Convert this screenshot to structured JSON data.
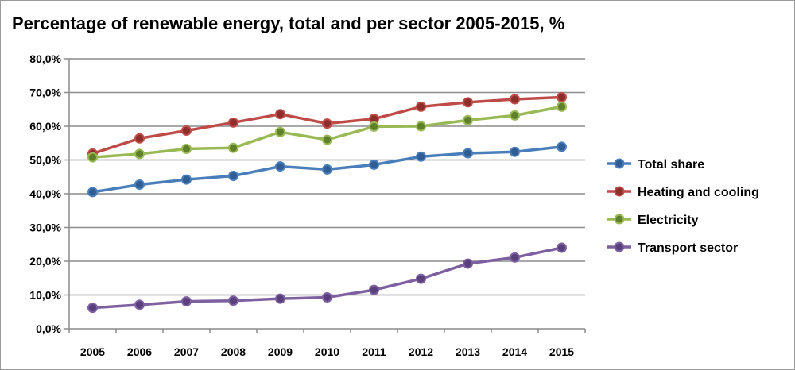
{
  "chart_data": {
    "type": "line",
    "title": "Percentage of renewable energy, total and per sector 2005-2015, %",
    "xlabel": "",
    "ylabel": "",
    "x": [
      "2005",
      "2006",
      "2007",
      "2008",
      "2009",
      "2010",
      "2011",
      "2012",
      "2013",
      "2014",
      "2015"
    ],
    "ylim": [
      0,
      80
    ],
    "yticks": [
      0,
      10,
      20,
      30,
      40,
      50,
      60,
      70,
      80
    ],
    "ytick_labels": [
      "0,0%",
      "10,0%",
      "20,0%",
      "30,0%",
      "40,0%",
      "50,0%",
      "60,0%",
      "70,0%",
      "80,0%"
    ],
    "grid": true,
    "legend_position": "right",
    "series": [
      {
        "name": "Total share",
        "color": "#4a7ebb",
        "marker_color": "#2f5d94",
        "values": [
          40.5,
          42.7,
          44.2,
          45.3,
          48.1,
          47.2,
          48.6,
          51.0,
          52.0,
          52.4,
          53.9
        ]
      },
      {
        "name": "Heating and cooling",
        "color": "#be4b48",
        "marker_color": "#8c2f2c",
        "values": [
          51.9,
          56.4,
          58.7,
          61.1,
          63.6,
          60.8,
          62.2,
          65.8,
          67.1,
          68.0,
          68.6
        ]
      },
      {
        "name": "Electricity",
        "color": "#98b954",
        "marker_color": "#5f7f2a",
        "values": [
          50.8,
          51.8,
          53.3,
          53.6,
          58.3,
          56.0,
          59.9,
          60.0,
          61.8,
          63.2,
          65.8
        ]
      },
      {
        "name": "Transport sector",
        "color": "#7d60a0",
        "marker_color": "#5a3f7d",
        "values": [
          6.2,
          7.1,
          8.1,
          8.3,
          8.9,
          9.3,
          11.5,
          14.8,
          19.3,
          21.1,
          24.0
        ]
      }
    ]
  }
}
